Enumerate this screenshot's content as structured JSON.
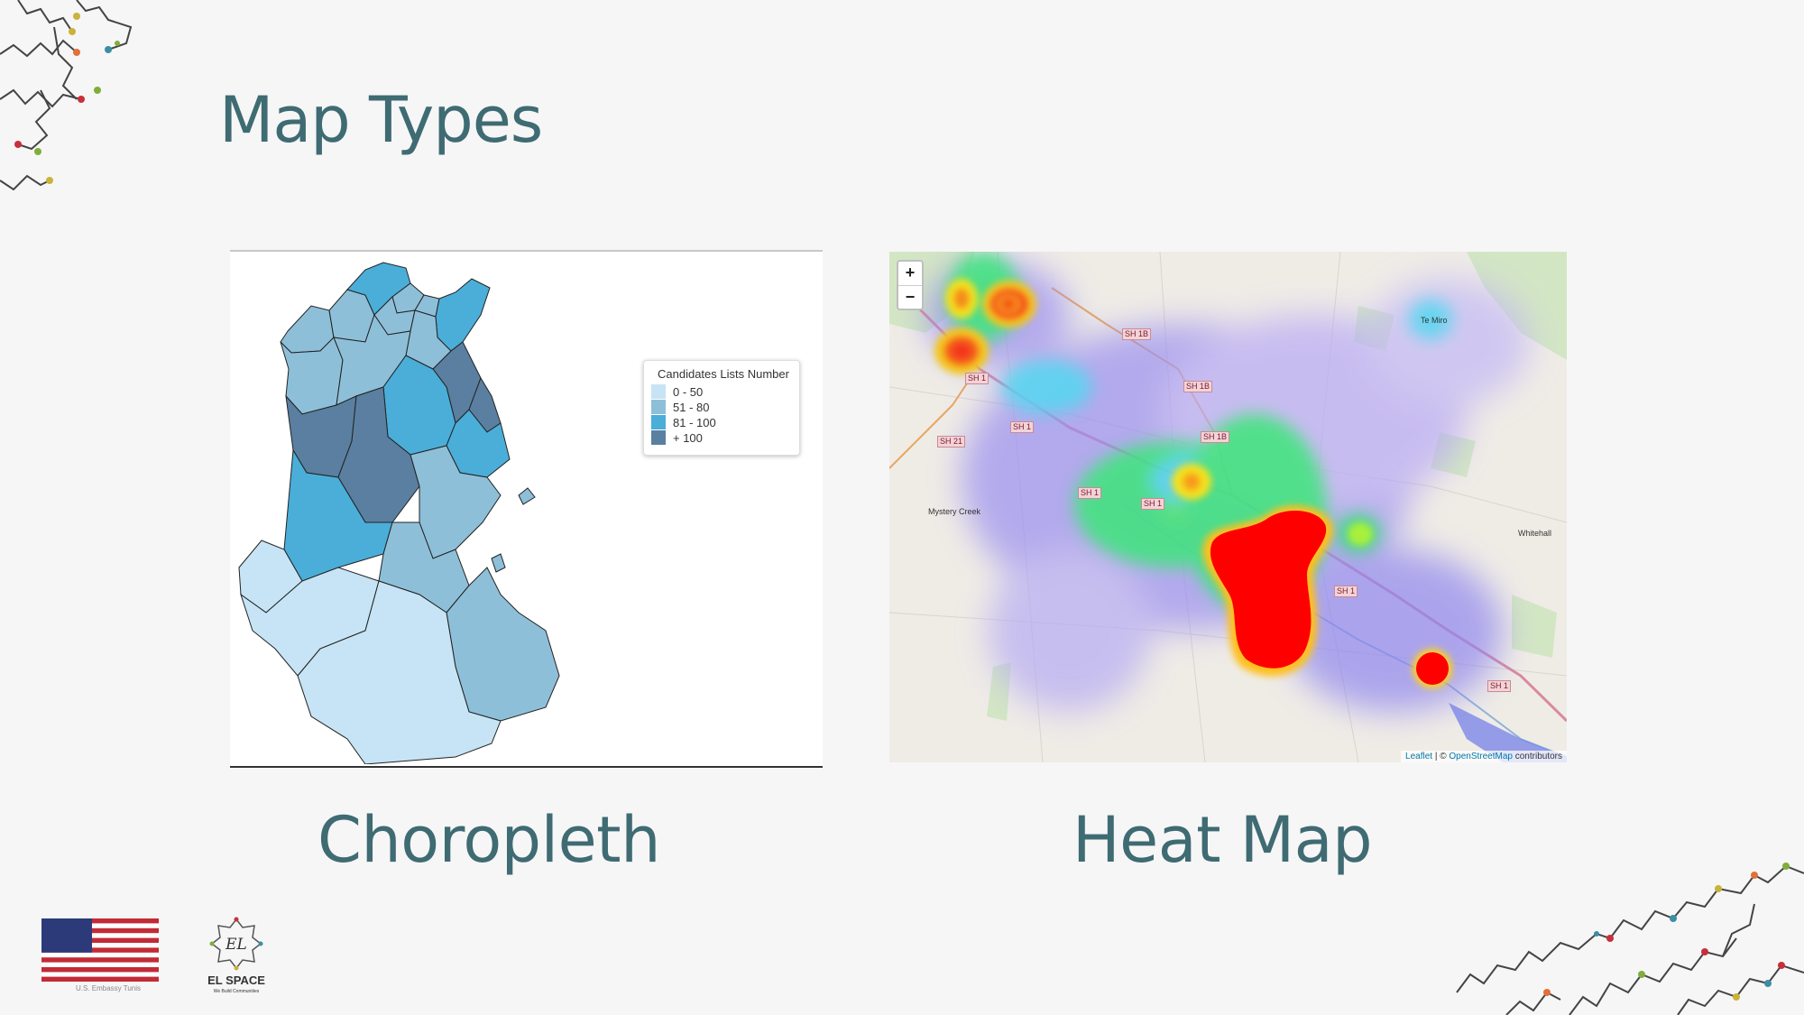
{
  "slide": {
    "title": "Map Types"
  },
  "choropleth": {
    "caption": "Choropleth",
    "legend": {
      "title": "Candidates Lists Number",
      "items": [
        {
          "label": "0 - 50",
          "color": "#c6e4f5"
        },
        {
          "label": "51 - 80",
          "color": "#8ebfd9"
        },
        {
          "label": "81 - 100",
          "color": "#4aaed9"
        },
        {
          "label": "+ 100",
          "color": "#5a7fa0"
        }
      ]
    }
  },
  "heatmap": {
    "caption": "Heat Map",
    "zoom_in": "+",
    "zoom_out": "−",
    "attribution_leaflet": "Leaflet",
    "attribution_sep": " | © ",
    "attribution_osm": "OpenStreetMap",
    "attribution_suffix": " contributors",
    "roads": [
      "SH 1",
      "SH 1",
      "SH 1",
      "SH 1",
      "SH 1",
      "SH 1",
      "SH 1B",
      "SH 1B",
      "SH 1B",
      "SH 21"
    ],
    "places": [
      "Mystery Creek",
      "Te Miro",
      "Whitehall"
    ]
  },
  "footer": {
    "embassy": "U.S. Embassy Tunis",
    "logo_mark": "EL",
    "logo_name": "EL SPACE",
    "logo_tagline": "We Build Communities"
  },
  "colors": {
    "title": "#3f6b73",
    "background": "#f6f6f6"
  }
}
